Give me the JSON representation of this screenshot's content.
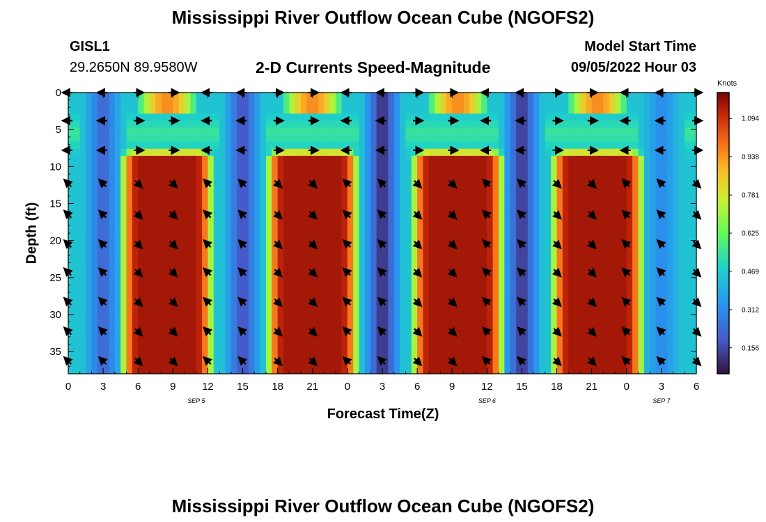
{
  "title": "Mississippi River Outflow Ocean Cube (NGOFS2)",
  "station": {
    "id": "GISL1",
    "location": "29.2650N  89.9580W"
  },
  "subtitle": "2-D Currents Speed-Magnitude",
  "model_start": {
    "label": "Model Start Time",
    "value": "09/05/2022 Hour 03"
  },
  "footer_title": "Mississippi River Outflow Ocean Cube (NGOFS2)",
  "chart_data": {
    "type": "heatmap",
    "title": "2-D Currents Speed-Magnitude",
    "xlabel": "Forecast Time(Z)",
    "ylabel": "Depth (ft)",
    "x_ticks": [
      "0",
      "3",
      "6",
      "9",
      "12",
      "15",
      "18",
      "21",
      "0",
      "3",
      "6",
      "9",
      "12",
      "15",
      "18",
      "21",
      "0",
      "3",
      "6"
    ],
    "x_range_hours": [
      0,
      54
    ],
    "date_labels": [
      {
        "label": "SEP 5",
        "hour": 11
      },
      {
        "label": "SEP 6",
        "hour": 36
      },
      {
        "label": "SEP 7",
        "hour": 51
      }
    ],
    "y_ticks": [
      "0",
      "5",
      "10",
      "15",
      "20",
      "25",
      "30",
      "35"
    ],
    "y_range_ft": [
      0,
      38
    ],
    "colorbar": {
      "unit": "Knots",
      "range": [
        0.05,
        1.2
      ],
      "tick_labels": [
        "0.156",
        "0.312",
        "0.469",
        "0.625",
        "0.781",
        "0.938",
        "1.094"
      ]
    },
    "speed_profile_peaks": [
      {
        "hour": 8.5,
        "value": 1.15
      },
      {
        "hour": 21,
        "value": 1.17
      },
      {
        "hour": 33.5,
        "value": 1.15
      },
      {
        "hour": 45.5,
        "value": 1.17
      }
    ],
    "speed_profile_minima": [
      {
        "hour": 3,
        "value": 0.2
      },
      {
        "hour": 15,
        "value": 0.15
      },
      {
        "hour": 27,
        "value": 0.08
      },
      {
        "hour": 39,
        "value": 0.1
      },
      {
        "hour": 51,
        "value": 0.3
      }
    ]
  }
}
